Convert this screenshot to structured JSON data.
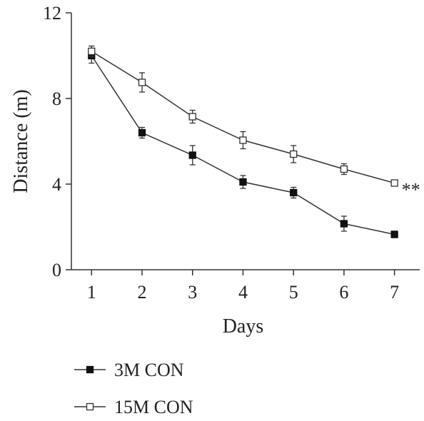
{
  "chart_data": {
    "type": "line",
    "xlabel": "Days",
    "ylabel": "Distance (m)",
    "x": [
      1,
      2,
      3,
      4,
      5,
      6,
      7
    ],
    "xlim": [
      0.6,
      7.5
    ],
    "ylim": [
      0,
      12
    ],
    "yticks": [
      0,
      4,
      8,
      12
    ],
    "xticks": [
      1,
      2,
      3,
      4,
      5,
      6,
      7
    ],
    "grid": false,
    "legend_position": "bottom-left",
    "annotation": "**",
    "series": [
      {
        "name": "3M CON",
        "marker": "filled-square",
        "values": [
          10.0,
          6.4,
          5.35,
          4.1,
          3.6,
          2.15,
          1.65
        ],
        "errors": [
          0.35,
          0.25,
          0.45,
          0.3,
          0.25,
          0.35,
          0.15
        ]
      },
      {
        "name": "15M CON",
        "marker": "open-square",
        "values": [
          10.2,
          8.75,
          7.15,
          6.05,
          5.4,
          4.7,
          4.05
        ],
        "errors": [
          0.25,
          0.45,
          0.3,
          0.4,
          0.4,
          0.25,
          0.1
        ]
      }
    ],
    "colors": {
      "line": "#333333",
      "filled_marker": "#111111",
      "open_marker_fill": "#ffffff"
    }
  }
}
